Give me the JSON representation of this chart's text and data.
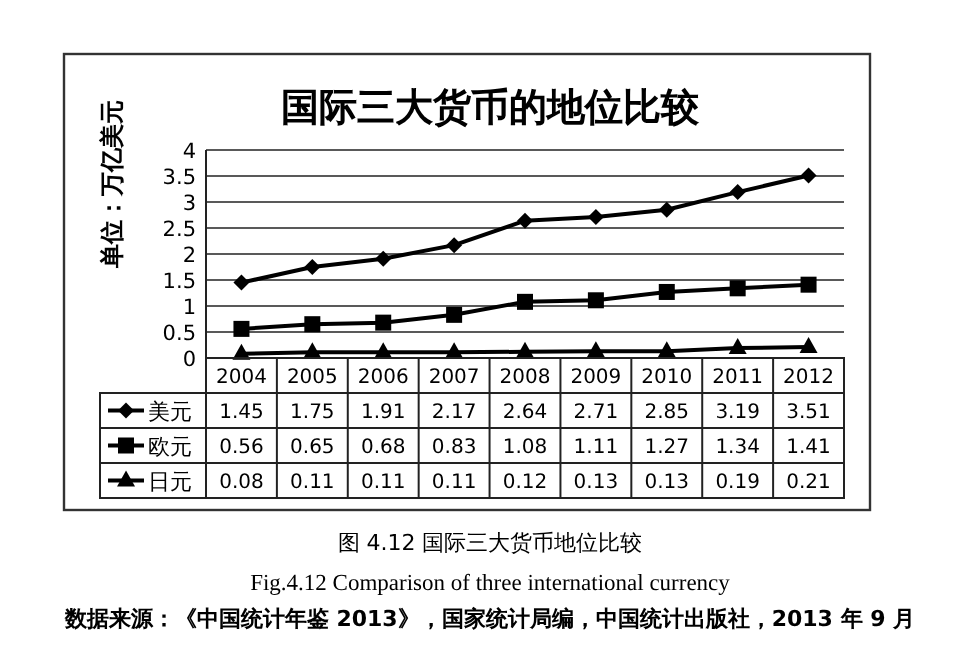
{
  "chart_data": {
    "type": "line",
    "title": "国际三大货币的地位比较",
    "ylabel": "单位：万亿美元",
    "categories": [
      "2004",
      "2005",
      "2006",
      "2007",
      "2008",
      "2009",
      "2010",
      "2011",
      "2012"
    ],
    "series": [
      {
        "name": "美元",
        "color": "#000000",
        "marker": "diamond",
        "values": [
          1.45,
          1.75,
          1.91,
          2.17,
          2.64,
          2.71,
          2.85,
          3.19,
          3.51
        ]
      },
      {
        "name": "欧元",
        "color": "#000000",
        "marker": "square",
        "values": [
          0.56,
          0.65,
          0.68,
          0.83,
          1.08,
          1.11,
          1.27,
          1.34,
          1.41
        ]
      },
      {
        "name": "日元",
        "color": "#000000",
        "marker": "triangle",
        "values": [
          0.08,
          0.11,
          0.11,
          0.11,
          0.12,
          0.13,
          0.13,
          0.19,
          0.21
        ]
      }
    ],
    "ylim": [
      0,
      4
    ],
    "yticks": [
      0,
      0.5,
      1,
      1.5,
      2,
      2.5,
      3,
      3.5,
      4
    ],
    "grid": "y",
    "legend": "bottom",
    "data_labels": true,
    "line_style": "solid",
    "annotations": [
      "图 4.12  国际三大货币地位比较",
      "Fig.4.12 Comparison of three international currency",
      "数据来源：《中国统计年鉴 2013》，国家统计局编，中国统计出版社，2013 年 9 月"
    ]
  }
}
